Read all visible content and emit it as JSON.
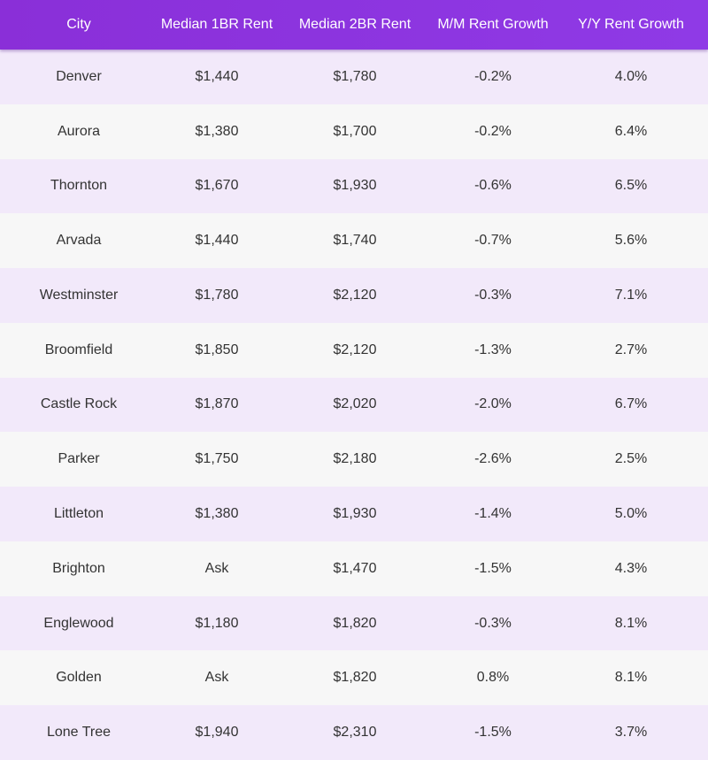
{
  "table": {
    "header": [
      "City",
      "Median 1BR Rent",
      "Median 2BR Rent",
      "M/M Rent Growth",
      "Y/Y Rent Growth"
    ],
    "rows": [
      [
        "Denver",
        "$1,440",
        "$1,780",
        "-0.2%",
        "4.0%"
      ],
      [
        "Aurora",
        "$1,380",
        "$1,700",
        "-0.2%",
        "6.4%"
      ],
      [
        "Thornton",
        "$1,670",
        "$1,930",
        "-0.6%",
        "6.5%"
      ],
      [
        "Arvada",
        "$1,440",
        "$1,740",
        "-0.7%",
        "5.6%"
      ],
      [
        "Westminster",
        "$1,780",
        "$2,120",
        "-0.3%",
        "7.1%"
      ],
      [
        "Broomfield",
        "$1,850",
        "$2,120",
        "-1.3%",
        "2.7%"
      ],
      [
        "Castle Rock",
        "$1,870",
        "$2,020",
        "-2.0%",
        "6.7%"
      ],
      [
        "Parker",
        "$1,750",
        "$2,180",
        "-2.6%",
        "2.5%"
      ],
      [
        "Littleton",
        "$1,380",
        "$1,930",
        "-1.4%",
        "5.0%"
      ],
      [
        "Brighton",
        "Ask",
        "$1,470",
        "-1.5%",
        "4.3%"
      ],
      [
        "Englewood",
        "$1,180",
        "$1,820",
        "-0.3%",
        "8.1%"
      ],
      [
        "Golden",
        "Ask",
        "$1,820",
        "0.8%",
        "8.1%"
      ],
      [
        "Lone Tree",
        "$1,940",
        "$2,310",
        "-1.5%",
        "3.7%"
      ]
    ]
  }
}
